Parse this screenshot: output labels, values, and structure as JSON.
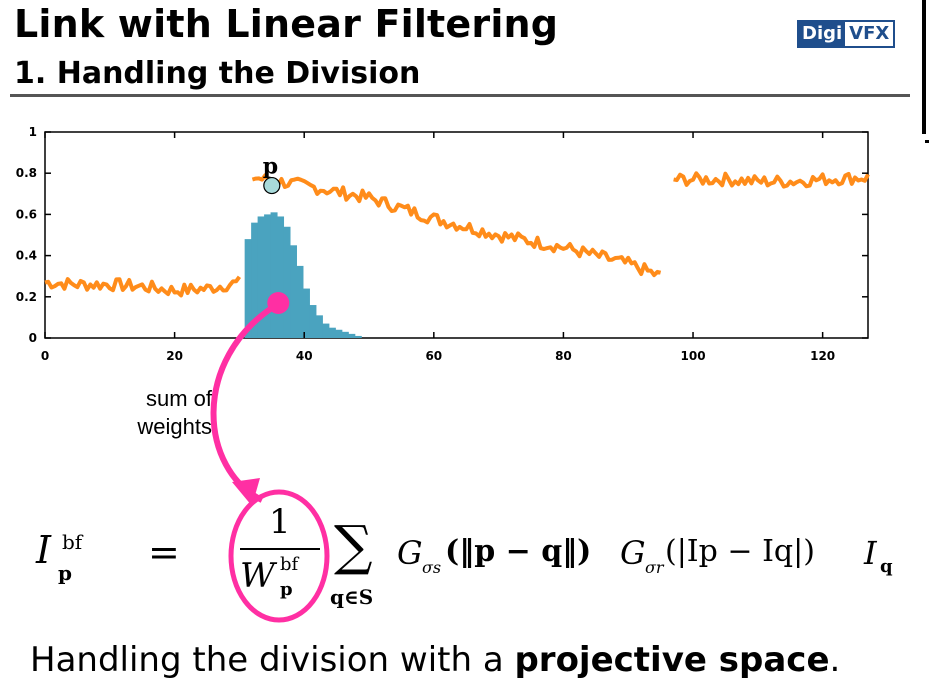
{
  "slide": {
    "title": "Link with Linear Filtering",
    "subtitle": "1. Handling the Division",
    "logo_part1": "Digi",
    "logo_part2": "VFX",
    "caption_plain": "Handling the division with a ",
    "caption_bold": "projective space",
    "caption_end": "."
  },
  "annotations": {
    "point_label": "p",
    "sum_label_line1": "sum of",
    "sum_label_line2": "weights"
  },
  "formula": {
    "lhs": "I",
    "lhs_sub": "p",
    "lhs_sup": "bf",
    "equals": "=",
    "frac_num": "1",
    "frac_den": "W",
    "frac_den_sub": "p",
    "frac_den_sup": "bf",
    "sum_symbol": "∑",
    "sum_sub": "q∈S",
    "term1": "G",
    "term1_sub": "σs",
    "term1_arg": "(‖p − q‖)",
    "term2": "G",
    "term2_sub": "σr",
    "term2_arg": "(|Ip − Iq|)",
    "term3": "I",
    "term3_sub": "q"
  },
  "colors": {
    "signal": "#ff8c1a",
    "histogram": "#4aa3bf",
    "highlight": "#ff2fa3",
    "point_fill": "#a8dada",
    "logo": "#1f4e8c"
  },
  "chart_data": {
    "type": "line",
    "xlim": [
      0,
      127
    ],
    "ylim": [
      0,
      1
    ],
    "xticks": [
      0,
      20,
      40,
      60,
      80,
      100,
      120
    ],
    "yticks": [
      0,
      0.2,
      0.4,
      0.6,
      0.8,
      1
    ],
    "xtick_labels": [
      "0",
      "20",
      "40",
      "60",
      "80",
      "100",
      "120"
    ],
    "ytick_labels": [
      "0",
      "0.2",
      "0.4",
      "0.6",
      "0.8",
      "1"
    ],
    "series": [
      {
        "segment": "left",
        "x": [
          0,
          5,
          10,
          15,
          20,
          25,
          30
        ],
        "y": [
          0.27,
          0.26,
          0.26,
          0.25,
          0.23,
          0.24,
          0.27
        ]
      },
      {
        "segment": "middle",
        "x": [
          32,
          40,
          50,
          60,
          70,
          80,
          90,
          95
        ],
        "y": [
          0.78,
          0.74,
          0.68,
          0.58,
          0.5,
          0.44,
          0.36,
          0.3
        ]
      },
      {
        "segment": "right",
        "x": [
          97,
          105,
          110,
          115,
          120,
          127
        ],
        "y": [
          0.77,
          0.77,
          0.76,
          0.76,
          0.77,
          0.78
        ]
      }
    ],
    "histogram": {
      "x": [
        31,
        32,
        33,
        34,
        35,
        36,
        37,
        38,
        39,
        40,
        41,
        42,
        43,
        44,
        45,
        46,
        47,
        48
      ],
      "y": [
        0.48,
        0.56,
        0.59,
        0.6,
        0.61,
        0.59,
        0.54,
        0.45,
        0.35,
        0.24,
        0.16,
        0.11,
        0.07,
        0.05,
        0.04,
        0.03,
        0.02,
        0.01
      ]
    },
    "point": {
      "x": 35,
      "y": 0.74
    },
    "weights_marker": {
      "x": 36,
      "y": 0.17
    }
  }
}
